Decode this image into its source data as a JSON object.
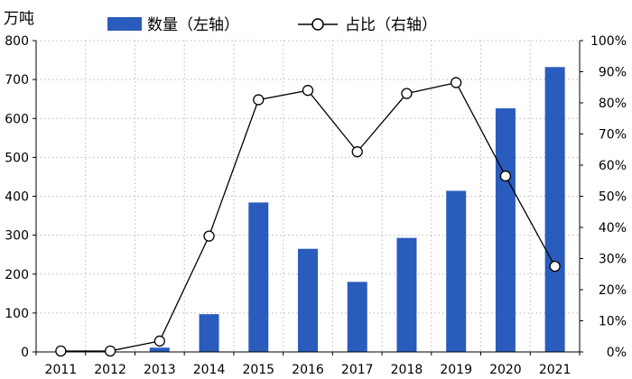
{
  "chart_data": {
    "type": "bar",
    "categories": [
      "2011",
      "2012",
      "2013",
      "2014",
      "2015",
      "2016",
      "2017",
      "2018",
      "2019",
      "2020",
      "2021"
    ],
    "series": [
      {
        "name": "数量（左轴）",
        "type": "bar",
        "axis": "left",
        "color": "#2a5cbd",
        "values": [
          0,
          0,
          11,
          97,
          384,
          265,
          180,
          293,
          414,
          626,
          732
        ]
      },
      {
        "name": "占比（右轴）",
        "type": "line",
        "axis": "right",
        "color": "#000000",
        "marker": "open-circle",
        "values": [
          0.3,
          0.3,
          3.5,
          37.2,
          81.0,
          84.0,
          64.3,
          83.0,
          86.5,
          56.5,
          27.5
        ]
      }
    ],
    "ylabel": "万吨",
    "ylim": [
      0,
      800
    ],
    "yticks": [
      "0",
      "100",
      "200",
      "300",
      "400",
      "500",
      "600",
      "700",
      "800"
    ],
    "y2lim": [
      0,
      100
    ],
    "y2ticks": [
      "0%",
      "10%",
      "20%",
      "30%",
      "40%",
      "50%",
      "60%",
      "70%",
      "80%",
      "90%",
      "100%"
    ],
    "grid": true,
    "grid_style": "dotted",
    "legend": "top"
  }
}
